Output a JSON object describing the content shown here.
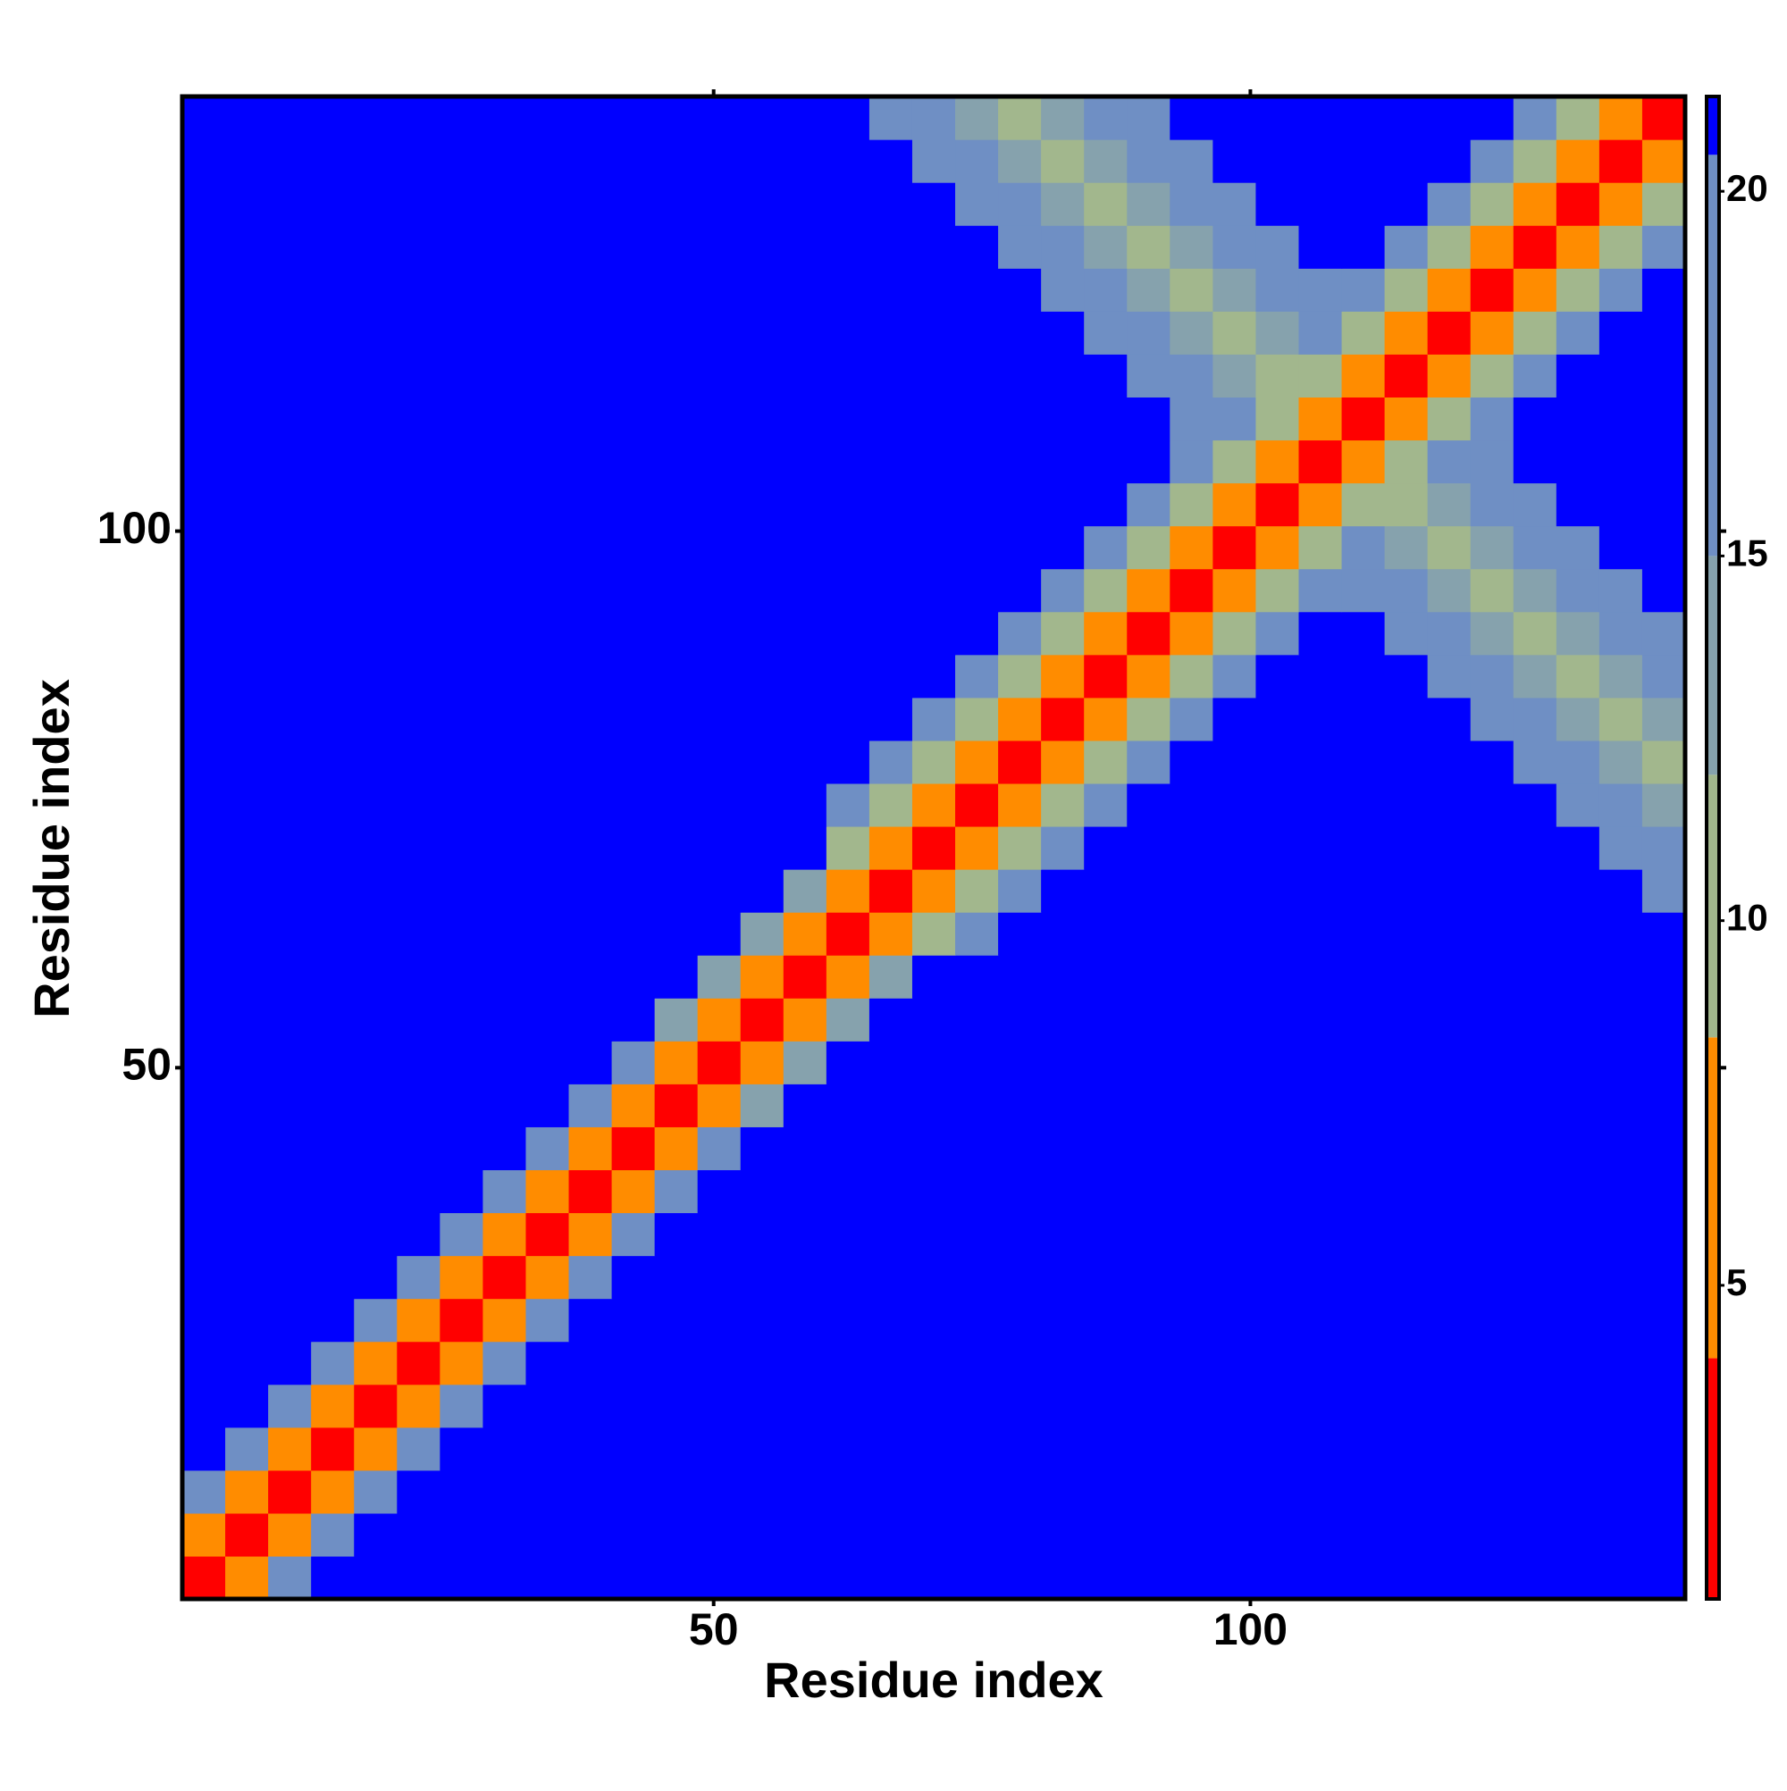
{
  "chart_data": {
    "type": "heatmap",
    "xlabel": "Residue index",
    "ylabel": "Residue index",
    "x": [
      2.5,
      6.5,
      10.5,
      14.5,
      18.5,
      22.5,
      26.5,
      30.5,
      34.5,
      38.5,
      42.5,
      46.5,
      50.5,
      54.5,
      58.5,
      62.5,
      66.5,
      70.5,
      74.5,
      78.5,
      82.5,
      86.5,
      90.5,
      94.5,
      98.5,
      102.5,
      106.5,
      110.5,
      114.5,
      118.5,
      122.5,
      126.5,
      130.5,
      134.5,
      138.5
    ],
    "y": [
      2.5,
      6.5,
      10.5,
      14.5,
      18.5,
      22.5,
      26.5,
      30.5,
      34.5,
      38.5,
      42.5,
      46.5,
      50.5,
      54.5,
      58.5,
      62.5,
      66.5,
      70.5,
      74.5,
      78.5,
      82.5,
      86.5,
      90.5,
      94.5,
      98.5,
      102.5,
      106.5,
      110.5,
      114.5,
      118.5,
      122.5,
      126.5,
      130.5,
      134.5,
      138.5
    ],
    "z": [
      [
        2,
        7,
        17,
        21,
        21,
        21,
        21,
        21,
        21,
        21,
        21,
        21,
        21,
        21,
        21,
        21,
        21,
        21,
        21,
        21,
        21,
        21,
        21,
        21,
        21,
        21,
        21,
        21,
        21,
        21,
        21,
        21,
        21,
        21,
        21
      ],
      [
        7,
        2,
        7,
        17,
        21,
        21,
        21,
        21,
        21,
        21,
        21,
        21,
        21,
        21,
        21,
        21,
        21,
        21,
        21,
        21,
        21,
        21,
        21,
        21,
        21,
        21,
        21,
        21,
        21,
        21,
        21,
        21,
        21,
        21,
        21
      ],
      [
        17,
        7,
        2,
        7,
        17,
        21,
        21,
        21,
        21,
        21,
        21,
        21,
        21,
        21,
        21,
        21,
        21,
        21,
        21,
        21,
        21,
        21,
        21,
        21,
        21,
        21,
        21,
        21,
        21,
        21,
        21,
        21,
        21,
        21,
        21
      ],
      [
        21,
        17,
        7,
        2,
        7,
        17,
        21,
        21,
        21,
        21,
        21,
        21,
        21,
        21,
        21,
        21,
        21,
        21,
        21,
        21,
        21,
        21,
        21,
        21,
        21,
        21,
        21,
        21,
        21,
        21,
        21,
        21,
        21,
        21,
        21
      ],
      [
        21,
        21,
        17,
        7,
        2,
        7,
        17,
        21,
        21,
        21,
        21,
        21,
        21,
        21,
        21,
        21,
        21,
        21,
        21,
        21,
        21,
        21,
        21,
        21,
        21,
        21,
        21,
        21,
        21,
        21,
        21,
        21,
        21,
        21,
        21
      ],
      [
        21,
        21,
        21,
        17,
        7,
        2,
        7,
        17,
        21,
        21,
        21,
        21,
        21,
        21,
        21,
        21,
        21,
        21,
        21,
        21,
        21,
        21,
        21,
        21,
        21,
        21,
        21,
        21,
        21,
        21,
        21,
        21,
        21,
        21,
        21
      ],
      [
        21,
        21,
        21,
        21,
        17,
        7,
        2,
        7,
        17,
        21,
        21,
        21,
        21,
        21,
        21,
        21,
        21,
        21,
        21,
        21,
        21,
        21,
        21,
        21,
        21,
        21,
        21,
        21,
        21,
        21,
        21,
        21,
        21,
        21,
        21
      ],
      [
        21,
        21,
        21,
        21,
        21,
        17,
        7,
        2,
        7,
        17,
        21,
        21,
        21,
        21,
        21,
        21,
        21,
        21,
        21,
        21,
        21,
        21,
        21,
        21,
        21,
        21,
        21,
        21,
        21,
        21,
        21,
        21,
        21,
        21,
        21
      ],
      [
        21,
        21,
        21,
        21,
        21,
        21,
        17,
        7,
        2,
        7,
        17,
        21,
        21,
        21,
        21,
        21,
        21,
        21,
        21,
        21,
        21,
        21,
        21,
        21,
        21,
        21,
        21,
        21,
        21,
        21,
        21,
        21,
        21,
        21,
        21
      ],
      [
        21,
        21,
        21,
        21,
        21,
        21,
        21,
        17,
        7,
        2,
        7,
        17,
        21,
        21,
        21,
        21,
        21,
        21,
        21,
        21,
        21,
        21,
        21,
        21,
        21,
        21,
        21,
        21,
        21,
        21,
        21,
        21,
        21,
        21,
        21
      ],
      [
        21,
        21,
        21,
        21,
        21,
        21,
        21,
        21,
        17,
        7,
        2,
        7,
        17,
        21,
        21,
        21,
        21,
        21,
        21,
        21,
        21,
        21,
        21,
        21,
        21,
        21,
        21,
        21,
        21,
        21,
        21,
        21,
        21,
        21,
        21
      ],
      [
        21,
        21,
        21,
        21,
        21,
        21,
        21,
        21,
        21,
        17,
        7,
        2,
        7,
        13,
        21,
        21,
        21,
        21,
        21,
        21,
        21,
        21,
        21,
        21,
        21,
        21,
        21,
        21,
        21,
        21,
        21,
        21,
        21,
        21,
        21
      ],
      [
        21,
        21,
        21,
        21,
        21,
        21,
        21,
        21,
        21,
        21,
        17,
        7,
        2,
        6,
        13,
        21,
        21,
        21,
        21,
        21,
        21,
        21,
        21,
        21,
        21,
        21,
        21,
        21,
        21,
        21,
        21,
        21,
        21,
        21,
        21
      ],
      [
        21,
        21,
        21,
        21,
        21,
        21,
        21,
        21,
        21,
        21,
        21,
        13,
        6,
        2,
        6,
        13,
        21,
        21,
        21,
        21,
        21,
        21,
        21,
        21,
        21,
        21,
        21,
        21,
        21,
        21,
        21,
        21,
        21,
        21,
        21
      ],
      [
        21,
        21,
        21,
        21,
        21,
        21,
        21,
        21,
        21,
        21,
        21,
        21,
        13,
        6,
        2,
        6,
        13,
        21,
        21,
        21,
        21,
        21,
        21,
        21,
        21,
        21,
        21,
        21,
        21,
        21,
        21,
        21,
        21,
        21,
        21
      ],
      [
        21,
        21,
        21,
        21,
        21,
        21,
        21,
        21,
        21,
        21,
        21,
        21,
        21,
        13,
        6,
        2,
        6,
        10,
        16,
        21,
        21,
        21,
        21,
        21,
        21,
        21,
        21,
        21,
        21,
        21,
        21,
        21,
        21,
        21,
        21
      ],
      [
        21,
        21,
        21,
        21,
        21,
        21,
        21,
        21,
        21,
        21,
        21,
        21,
        21,
        21,
        13,
        6,
        2,
        5,
        10,
        16,
        21,
        21,
        21,
        21,
        21,
        21,
        21,
        21,
        21,
        21,
        21,
        21,
        21,
        21,
        17
      ],
      [
        21,
        21,
        21,
        21,
        21,
        21,
        21,
        21,
        21,
        21,
        21,
        21,
        21,
        21,
        21,
        10,
        5,
        2,
        5,
        10,
        16,
        21,
        21,
        21,
        21,
        21,
        21,
        21,
        21,
        21,
        21,
        21,
        21,
        17,
        16
      ],
      [
        21,
        21,
        21,
        21,
        21,
        21,
        21,
        21,
        21,
        21,
        21,
        21,
        21,
        21,
        21,
        16,
        10,
        5,
        2,
        5,
        10,
        16,
        21,
        21,
        21,
        21,
        21,
        21,
        21,
        21,
        21,
        21,
        17,
        16,
        14
      ],
      [
        21,
        21,
        21,
        21,
        21,
        21,
        21,
        21,
        21,
        21,
        21,
        21,
        21,
        21,
        21,
        21,
        16,
        10,
        5,
        2,
        5,
        10,
        16,
        21,
        21,
        21,
        21,
        21,
        21,
        21,
        21,
        17,
        16,
        14,
        11
      ],
      [
        21,
        21,
        21,
        21,
        21,
        21,
        21,
        21,
        21,
        21,
        21,
        21,
        21,
        21,
        21,
        21,
        21,
        16,
        10,
        5,
        2,
        5,
        10,
        16,
        21,
        21,
        21,
        21,
        21,
        21,
        17,
        16,
        14,
        11,
        14
      ],
      [
        21,
        21,
        21,
        21,
        21,
        21,
        21,
        21,
        21,
        21,
        21,
        21,
        21,
        21,
        21,
        21,
        21,
        21,
        16,
        10,
        5,
        2,
        5,
        10,
        16,
        21,
        21,
        21,
        21,
        17,
        16,
        14,
        11,
        14,
        16
      ],
      [
        21,
        21,
        21,
        21,
        21,
        21,
        21,
        21,
        21,
        21,
        21,
        21,
        21,
        21,
        21,
        21,
        21,
        21,
        21,
        16,
        10,
        5,
        2,
        5,
        10,
        16,
        21,
        21,
        17,
        16,
        14,
        11,
        14,
        16,
        17
      ],
      [
        21,
        21,
        21,
        21,
        21,
        21,
        21,
        21,
        21,
        21,
        21,
        21,
        21,
        21,
        21,
        21,
        21,
        21,
        21,
        21,
        16,
        10,
        5,
        2,
        5,
        10,
        16,
        17,
        16,
        14,
        11,
        14,
        16,
        17,
        21
      ],
      [
        21,
        21,
        21,
        21,
        21,
        21,
        21,
        21,
        21,
        21,
        21,
        21,
        21,
        21,
        21,
        21,
        21,
        21,
        21,
        21,
        21,
        16,
        10,
        5,
        2,
        5,
        10,
        16,
        14,
        11,
        14,
        16,
        17,
        21,
        21
      ],
      [
        21,
        21,
        21,
        21,
        21,
        21,
        21,
        21,
        21,
        21,
        21,
        21,
        21,
        21,
        21,
        21,
        21,
        21,
        21,
        21,
        21,
        21,
        16,
        10,
        5,
        2,
        5,
        10,
        11,
        14,
        16,
        17,
        21,
        21,
        21
      ],
      [
        21,
        21,
        21,
        21,
        21,
        21,
        21,
        21,
        21,
        21,
        21,
        21,
        21,
        21,
        21,
        21,
        21,
        21,
        21,
        21,
        21,
        21,
        21,
        16,
        10,
        5,
        2,
        5,
        10,
        16,
        17,
        21,
        21,
        21,
        21
      ],
      [
        21,
        21,
        21,
        21,
        21,
        21,
        21,
        21,
        21,
        21,
        21,
        21,
        21,
        21,
        21,
        21,
        21,
        21,
        21,
        21,
        21,
        21,
        21,
        17,
        16,
        10,
        5,
        2,
        5,
        10,
        16,
        21,
        21,
        21,
        21
      ],
      [
        21,
        21,
        21,
        21,
        21,
        21,
        21,
        21,
        21,
        21,
        21,
        21,
        21,
        21,
        21,
        21,
        21,
        21,
        21,
        21,
        21,
        21,
        17,
        16,
        14,
        11,
        10,
        5,
        2,
        5,
        10,
        16,
        21,
        21,
        21
      ],
      [
        21,
        21,
        21,
        21,
        21,
        21,
        21,
        21,
        21,
        21,
        21,
        21,
        21,
        21,
        21,
        21,
        21,
        21,
        21,
        21,
        21,
        17,
        16,
        14,
        11,
        14,
        16,
        10,
        5,
        2,
        5,
        10,
        16,
        21,
        21
      ],
      [
        21,
        21,
        21,
        21,
        21,
        21,
        21,
        21,
        21,
        21,
        21,
        21,
        21,
        21,
        21,
        21,
        21,
        21,
        21,
        21,
        17,
        16,
        14,
        11,
        14,
        16,
        17,
        16,
        10,
        5,
        2,
        5,
        10,
        16,
        21
      ],
      [
        21,
        21,
        21,
        21,
        21,
        21,
        21,
        21,
        21,
        21,
        21,
        21,
        21,
        21,
        21,
        21,
        21,
        21,
        21,
        17,
        16,
        14,
        11,
        14,
        16,
        17,
        21,
        21,
        16,
        10,
        5,
        2,
        5,
        10,
        16
      ],
      [
        21,
        21,
        21,
        21,
        21,
        21,
        21,
        21,
        21,
        21,
        21,
        21,
        21,
        21,
        21,
        21,
        21,
        21,
        17,
        16,
        14,
        11,
        14,
        16,
        17,
        21,
        21,
        21,
        21,
        16,
        10,
        5,
        2,
        5,
        10
      ],
      [
        21,
        21,
        21,
        21,
        21,
        21,
        21,
        21,
        21,
        21,
        21,
        21,
        21,
        21,
        21,
        21,
        21,
        17,
        16,
        14,
        11,
        14,
        16,
        17,
        21,
        21,
        21,
        21,
        21,
        21,
        16,
        10,
        5,
        2,
        5
      ],
      [
        21,
        21,
        21,
        21,
        21,
        21,
        21,
        21,
        21,
        21,
        21,
        21,
        21,
        21,
        21,
        21,
        17,
        16,
        14,
        11,
        14,
        16,
        17,
        21,
        21,
        21,
        21,
        21,
        21,
        21,
        21,
        16,
        10,
        5,
        2
      ]
    ],
    "xlim": [
      0.5,
      140.5
    ],
    "ylim": [
      0.5,
      140.5
    ],
    "xticks": [
      50,
      100
    ],
    "yticks": [
      50,
      100
    ],
    "colorbar": {
      "lim": [
        0.7,
        21.3
      ],
      "ticks": [
        5,
        10,
        15,
        20
      ],
      "steps": [
        {
          "to": 4,
          "color": "#ff0000"
        },
        {
          "to": 8.4,
          "color": "#ff8c00"
        },
        {
          "to": 12,
          "color": "#a2b78d"
        },
        {
          "to": 15,
          "color": "#86a2ad"
        },
        {
          "to": 20.5,
          "color": "#6f8fc4"
        },
        {
          "to": 21.3,
          "color": "#0000ff"
        }
      ]
    }
  }
}
